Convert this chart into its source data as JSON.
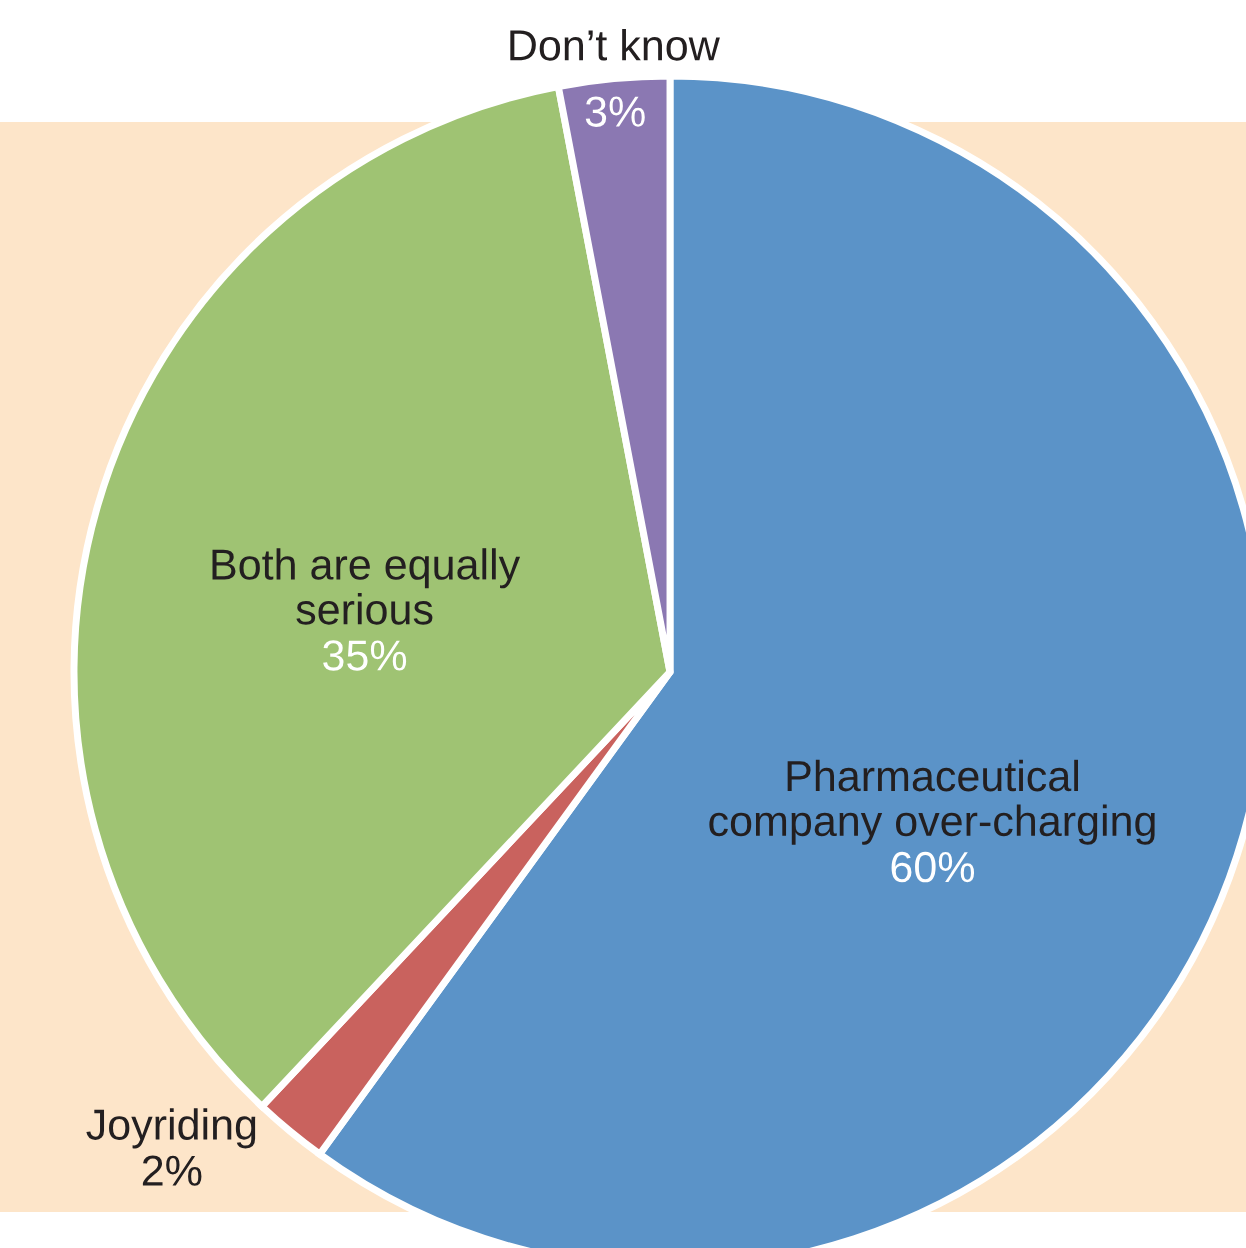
{
  "chart_data": {
    "type": "pie",
    "categories": [
      "Pharmaceutical\ncompany over-charging",
      "Joyriding",
      "Both are equally\nserious",
      "Don’t know"
    ],
    "values": [
      60,
      2,
      35,
      3
    ],
    "colors": [
      "#5b93c8",
      "#c9625e",
      "#9fc373",
      "#8b78b2"
    ],
    "value_labels": [
      "60%",
      "2%",
      "35%",
      "3%"
    ]
  }
}
